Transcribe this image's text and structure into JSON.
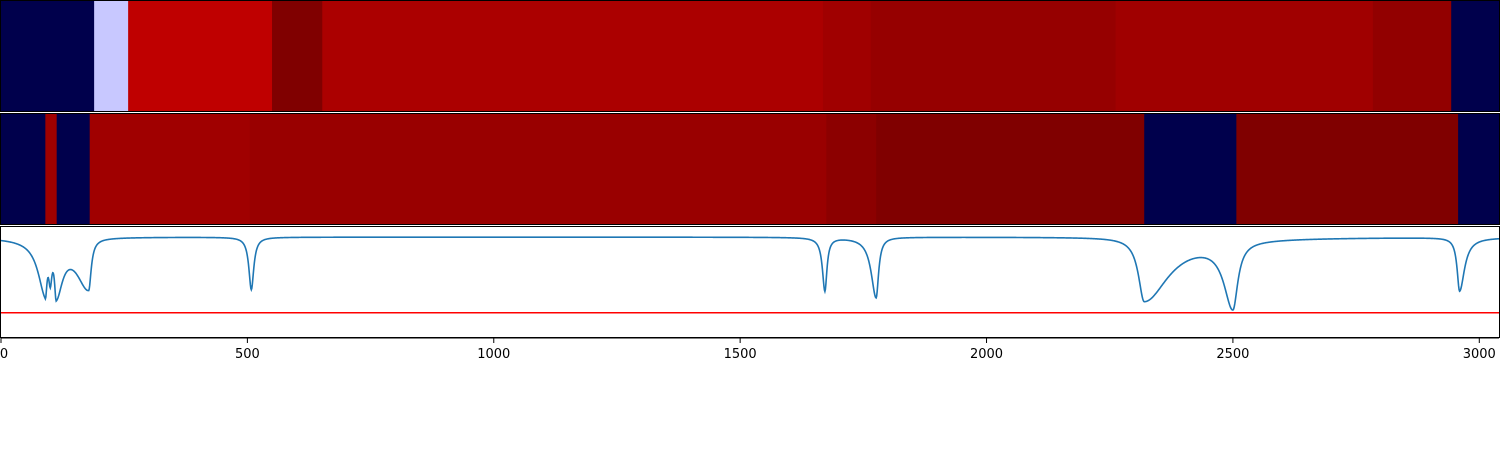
{
  "chart_data": {
    "type": "heatmap",
    "title": "",
    "xlabel": "",
    "ylabel": "",
    "xlim": [
      0,
      3040
    ],
    "x_ticks": [
      0,
      500,
      1000,
      1500,
      2000,
      2500,
      3000
    ],
    "x_tick_labels": [
      "0",
      "500",
      "1000",
      "1500",
      "2000",
      "2500",
      "3000"
    ],
    "grid": false,
    "legend": "none",
    "tracks": [
      {
        "name": "",
        "segments": [
          {
            "start": 0,
            "end": 189,
            "color": "#00004c"
          },
          {
            "start": 189,
            "end": 258,
            "color": "#c8c8ff"
          },
          {
            "start": 258,
            "end": 550,
            "color": "#bf0000"
          },
          {
            "start": 550,
            "end": 652,
            "color": "#800000"
          },
          {
            "start": 652,
            "end": 1668,
            "color": "#ab0000"
          },
          {
            "start": 1668,
            "end": 1765,
            "color": "#a00000"
          },
          {
            "start": 1765,
            "end": 2262,
            "color": "#960000"
          },
          {
            "start": 2262,
            "end": 2784,
            "color": "#a00000"
          },
          {
            "start": 2784,
            "end": 2943,
            "color": "#920000"
          },
          {
            "start": 2943,
            "end": 3040,
            "color": "#00004c"
          }
        ]
      },
      {
        "name": "",
        "segments": [
          {
            "start": 0,
            "end": 90,
            "color": "#00004c"
          },
          {
            "start": 90,
            "end": 113,
            "color": "#a00000"
          },
          {
            "start": 113,
            "end": 180,
            "color": "#00004c"
          },
          {
            "start": 180,
            "end": 505,
            "color": "#a00000"
          },
          {
            "start": 505,
            "end": 1675,
            "color": "#990000"
          },
          {
            "start": 1675,
            "end": 1776,
            "color": "#8c0000"
          },
          {
            "start": 1776,
            "end": 2320,
            "color": "#800000"
          },
          {
            "start": 2320,
            "end": 2507,
            "color": "#00004c"
          },
          {
            "start": 2507,
            "end": 2957,
            "color": "#800000"
          },
          {
            "start": 2957,
            "end": 3040,
            "color": "#00004c"
          }
        ]
      }
    ],
    "signal": {
      "color": "#1f77b4",
      "ylim": [
        -1.0,
        0.1
      ],
      "baseline": 0,
      "dips": [
        {
          "x": 90,
          "depth": 0.5,
          "width_left": 18,
          "width_right": 4
        },
        {
          "x": 100,
          "depth": 0.32,
          "width_left": 4,
          "width_right": 4
        },
        {
          "x": 112,
          "depth": 0.5,
          "width_left": 4,
          "width_right": 16
        },
        {
          "x": 178,
          "depth": 0.5,
          "width_left": 30,
          "width_right": 6
        },
        {
          "x": 508,
          "depth": 0.52,
          "width_left": 6,
          "width_right": 6
        },
        {
          "x": 1672,
          "depth": 0.53,
          "width_left": 6,
          "width_right": 5
        },
        {
          "x": 1776,
          "depth": 0.6,
          "width_left": 12,
          "width_right": 6
        },
        {
          "x": 2320,
          "depth": 0.63,
          "width_left": 14,
          "width_right": 60
        },
        {
          "x": 2500,
          "depth": 0.66,
          "width_left": 22,
          "width_right": 12
        },
        {
          "x": 2960,
          "depth": 0.53,
          "width_left": 6,
          "width_right": 12
        }
      ],
      "threshold": {
        "value": -0.75,
        "color": "#ff0000"
      }
    }
  }
}
